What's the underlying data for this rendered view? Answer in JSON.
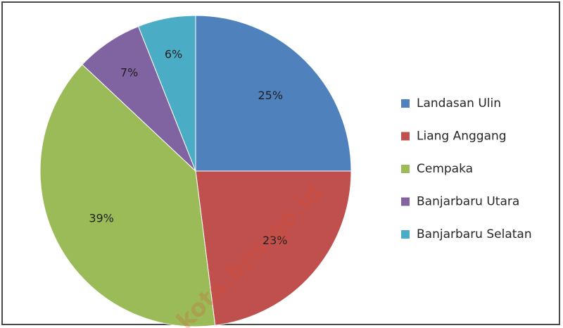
{
  "chart_data": {
    "type": "pie",
    "slices": [
      {
        "label": "Landasan Ulin",
        "value": 25,
        "value_label": "25%",
        "color": "#4f81bd"
      },
      {
        "label": "Liang Anggang",
        "value": 23,
        "value_label": "23%",
        "color": "#c0504d"
      },
      {
        "label": "Cempaka",
        "value": 39,
        "value_label": "39%",
        "color": "#9bbb59"
      },
      {
        "label": "Banjarbaru Utara",
        "value": 7,
        "value_label": "7%",
        "color": "#8064a2"
      },
      {
        "label": "Banjarbaru Selatan",
        "value": 6,
        "value_label": "6%",
        "color": "#4bacc6"
      }
    ],
    "start_angle": "12 o'clock",
    "direction": "clockwise",
    "legend_position": "right",
    "watermark": "kota.bps.go.id"
  }
}
